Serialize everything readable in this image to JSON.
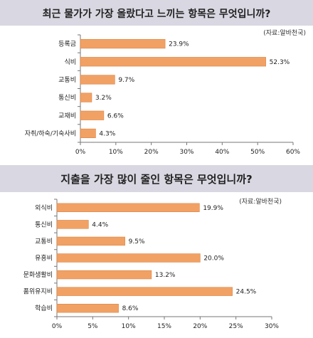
{
  "colors": {
    "bar": "#f2a165",
    "bar_edge": "#d9843f",
    "title_bg": "#d9d7e1"
  },
  "chart_data": [
    {
      "type": "bar",
      "orientation": "horizontal",
      "title": "최근 물가가 가장 올랐다고 느끼는 항목은 무엇입니까?",
      "source": "(자료:알바천국)",
      "categories": [
        "등록금",
        "식비",
        "교통비",
        "통신비",
        "교재비",
        "자취/하숙/기숙사비"
      ],
      "values": [
        23.9,
        52.3,
        9.7,
        3.2,
        6.6,
        4.3
      ],
      "value_labels": [
        "23.9%",
        "52.3%",
        "9.7%",
        "3.2%",
        "6.6%",
        "4.3%"
      ],
      "xlim": [
        0,
        60
      ],
      "ticks": [
        0,
        10,
        20,
        30,
        40,
        50,
        60
      ],
      "tick_labels": [
        "0%",
        "10%",
        "20%",
        "30%",
        "40%",
        "50%",
        "60%"
      ],
      "grid": false,
      "legend": false
    },
    {
      "type": "bar",
      "orientation": "horizontal",
      "title": "지출을 가장 많이 줄인 항목은 무엇입니까?",
      "source": "(자료:알바천국)",
      "categories": [
        "외식비",
        "통신비",
        "교통비",
        "유흥비",
        "문화생활비",
        "품위유지비",
        "학습비"
      ],
      "values": [
        19.9,
        4.4,
        9.5,
        20.0,
        13.2,
        24.5,
        8.6
      ],
      "value_labels": [
        "19.9%",
        "4.4%",
        "9.5%",
        "20.0%",
        "13.2%",
        "24.5%",
        "8.6%"
      ],
      "xlim": [
        0,
        30
      ],
      "ticks": [
        0,
        5,
        10,
        15,
        20,
        25,
        30
      ],
      "tick_labels": [
        "0%",
        "5%",
        "10%",
        "15%",
        "20%",
        "25%",
        "30%"
      ],
      "grid": false,
      "legend": false
    }
  ]
}
